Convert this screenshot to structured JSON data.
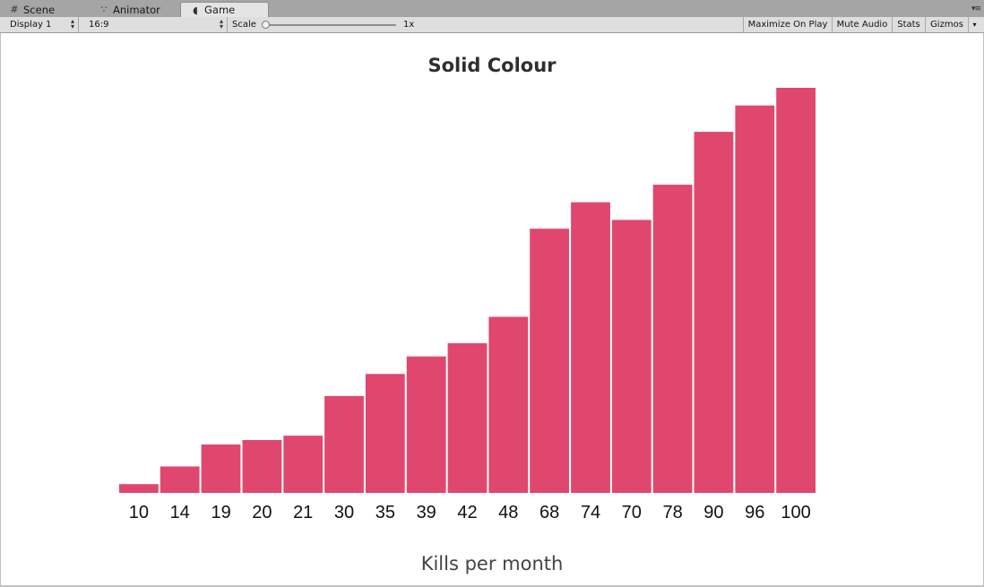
{
  "tabs": [
    {
      "label": "Scene",
      "icon": "grid-icon"
    },
    {
      "label": "Animator",
      "icon": "animator-icon"
    },
    {
      "label": "Game",
      "icon": "pacman-icon"
    }
  ],
  "toolbar": {
    "display": "Display 1",
    "aspect": "16:9",
    "scale_label": "Scale",
    "scale_value": "1x",
    "maximize_on_play": "Maximize On Play",
    "mute_audio": "Mute Audio",
    "stats": "Stats",
    "gizmos": "Gizmos"
  },
  "colors": {
    "bar": "#e0476f"
  },
  "chart_data": {
    "type": "bar",
    "title": "Solid Colour",
    "xlabel": "Kills per month",
    "ylabel": "",
    "categories": [
      "10",
      "14",
      "19",
      "20",
      "21",
      "30",
      "35",
      "39",
      "42",
      "48",
      "68",
      "74",
      "70",
      "78",
      "90",
      "96",
      "100"
    ],
    "values": [
      10,
      14,
      19,
      20,
      21,
      30,
      35,
      39,
      42,
      48,
      68,
      74,
      70,
      78,
      90,
      96,
      100
    ],
    "ylim": [
      8,
      100
    ],
    "grid": false,
    "legend": "none"
  }
}
